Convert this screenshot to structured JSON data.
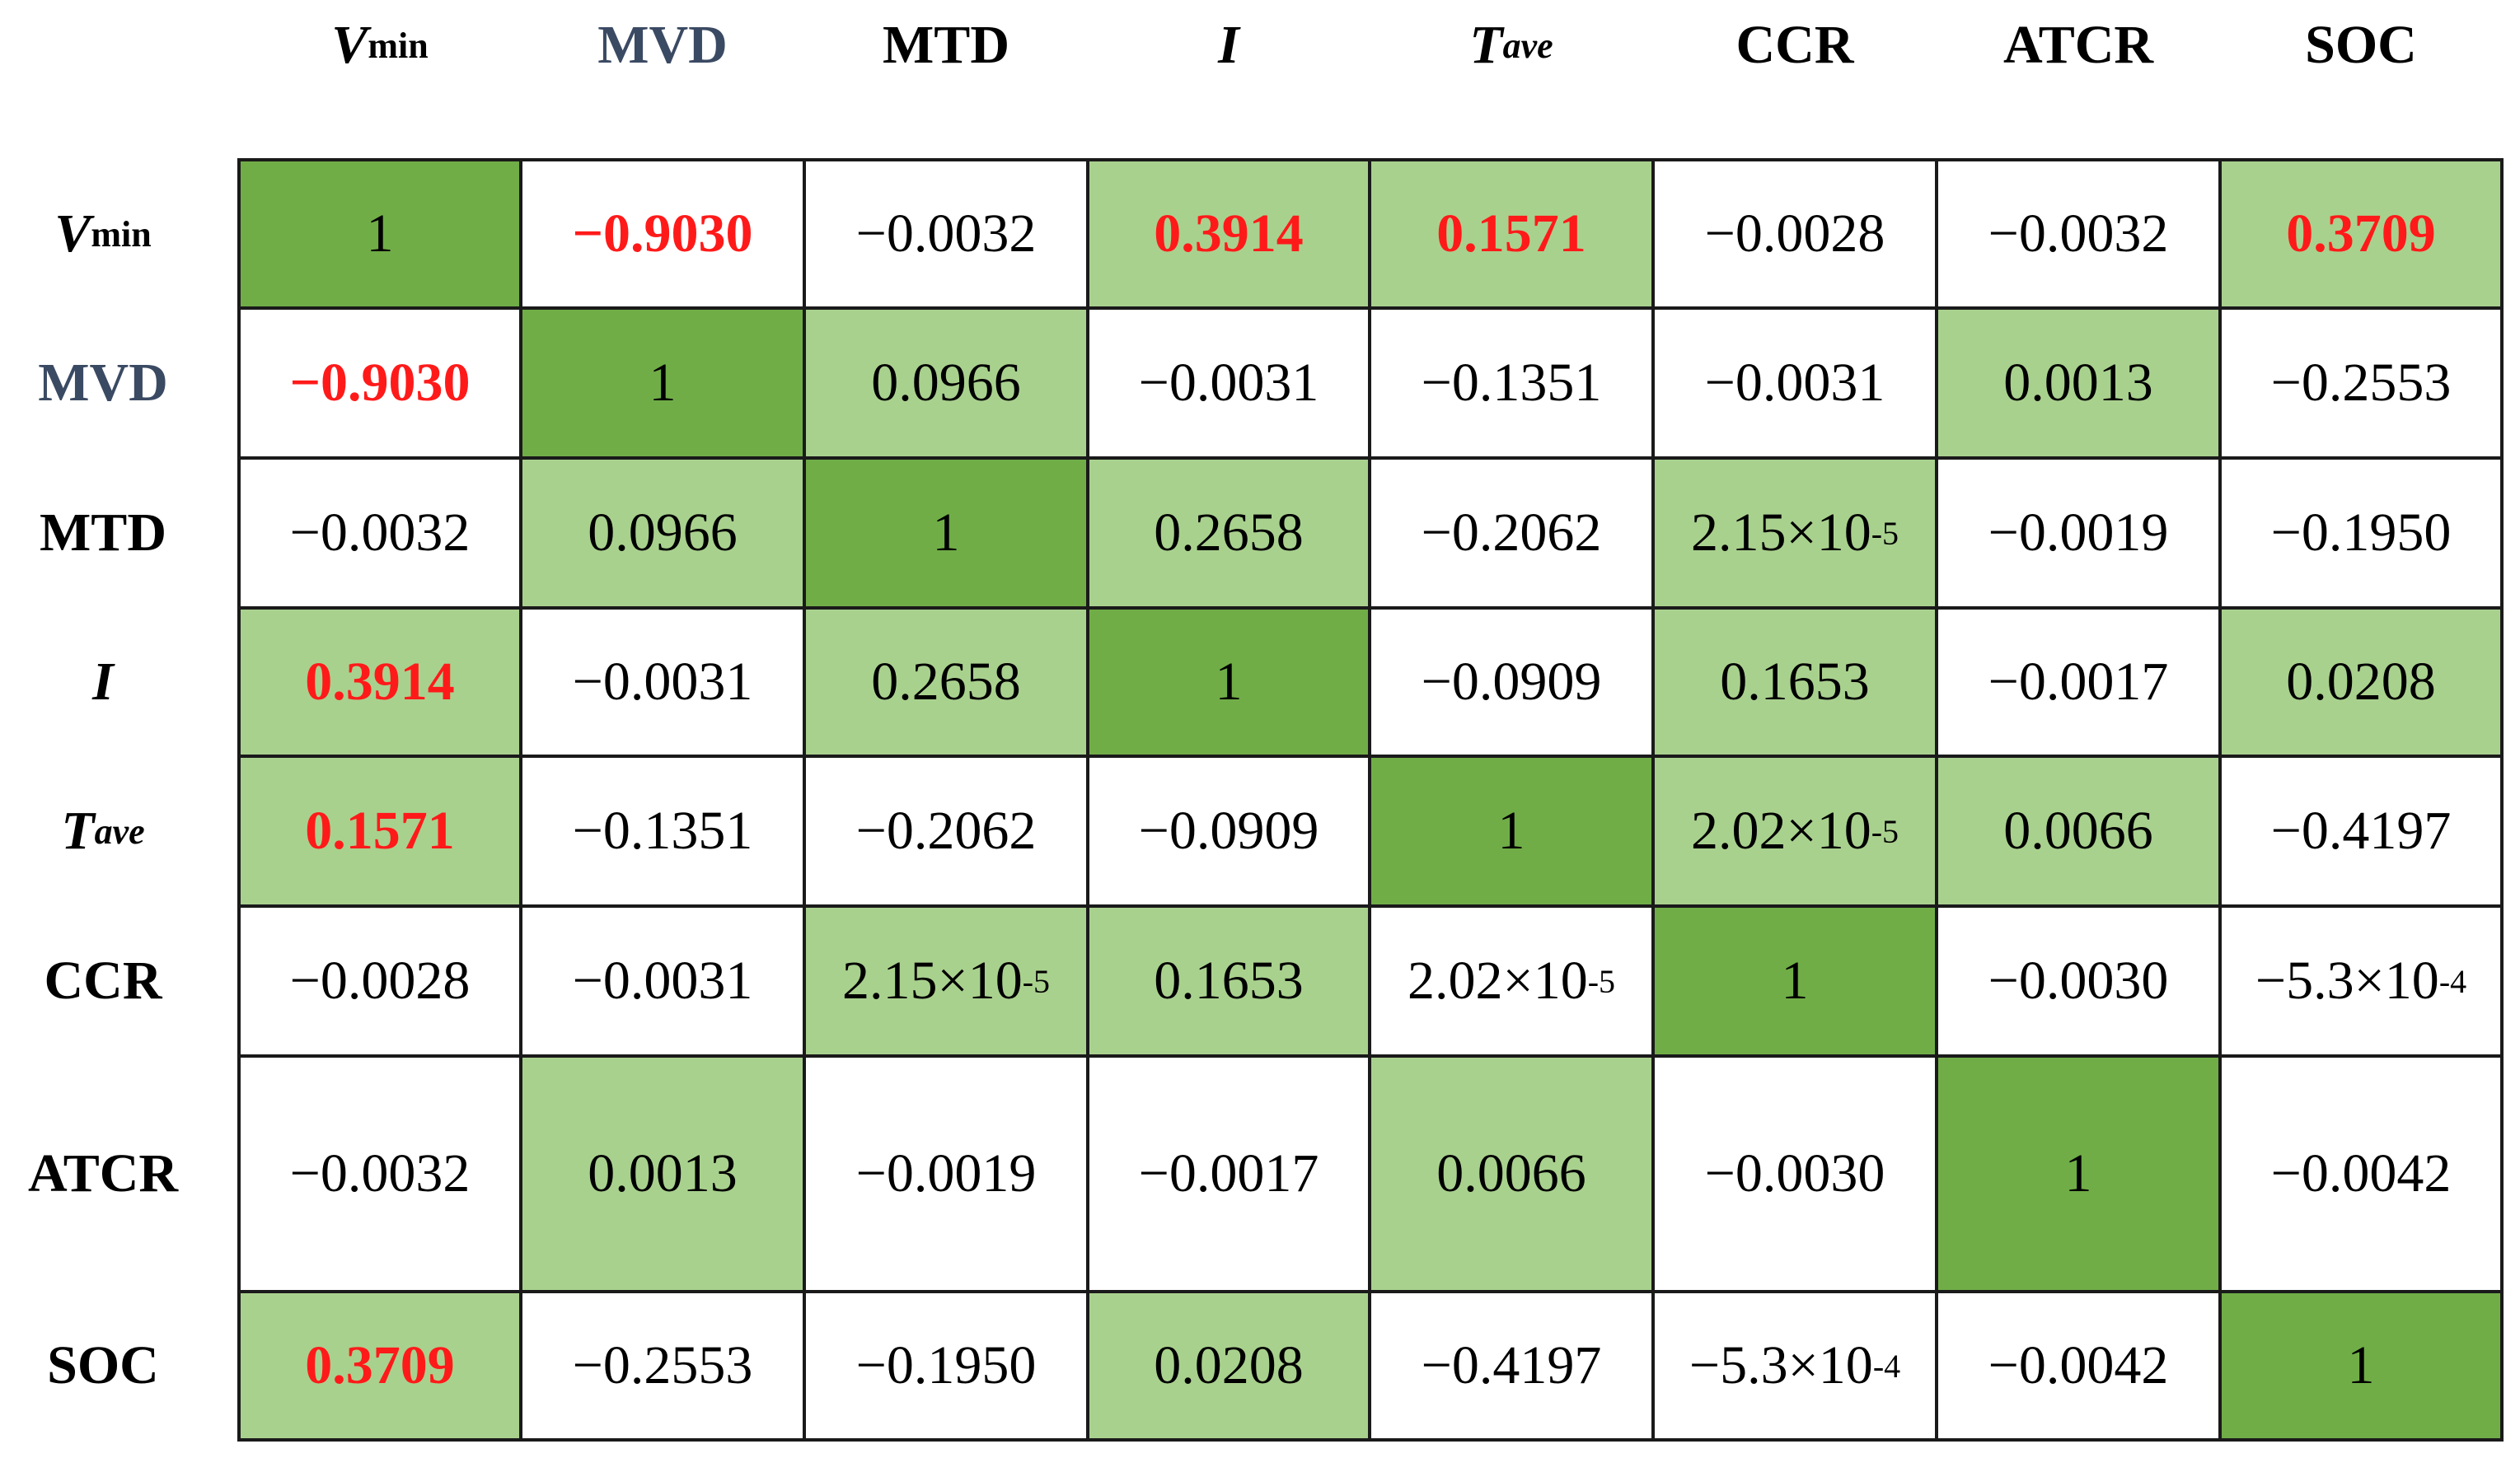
{
  "chart_data": {
    "type": "heatmap",
    "title": "",
    "variables": [
      {
        "id": "vmin",
        "base": "V",
        "sub": "min",
        "italic": true,
        "blue": false
      },
      {
        "id": "mvd",
        "base": "MVD",
        "sub": "",
        "italic": false,
        "blue": true
      },
      {
        "id": "mtd",
        "base": "MTD",
        "sub": "",
        "italic": false,
        "blue": false
      },
      {
        "id": "i",
        "base": "I",
        "sub": "",
        "italic": true,
        "blue": false
      },
      {
        "id": "tave",
        "base": "T",
        "sub": "ave",
        "italic": true,
        "blue": false
      },
      {
        "id": "ccr",
        "base": "CCR",
        "sub": "",
        "italic": false,
        "blue": false
      },
      {
        "id": "atcr",
        "base": "ATCR",
        "sub": "",
        "italic": false,
        "blue": false
      },
      {
        "id": "soc",
        "base": "SOC",
        "sub": "",
        "italic": false,
        "blue": false
      }
    ],
    "matrix": [
      [
        {
          "text": "1",
          "exp": "",
          "value": 1,
          "shade": "dark",
          "highlight": false
        },
        {
          "text": "−0.9030",
          "exp": "",
          "value": -0.903,
          "shade": "none",
          "highlight": true
        },
        {
          "text": "−0.0032",
          "exp": "",
          "value": -0.0032,
          "shade": "none",
          "highlight": false
        },
        {
          "text": "0.3914",
          "exp": "",
          "value": 0.3914,
          "shade": "light",
          "highlight": true
        },
        {
          "text": "0.1571",
          "exp": "",
          "value": 0.1571,
          "shade": "light",
          "highlight": true
        },
        {
          "text": "−0.0028",
          "exp": "",
          "value": -0.0028,
          "shade": "none",
          "highlight": false
        },
        {
          "text": "−0.0032",
          "exp": "",
          "value": -0.0032,
          "shade": "none",
          "highlight": false
        },
        {
          "text": "0.3709",
          "exp": "",
          "value": 0.3709,
          "shade": "light",
          "highlight": true
        }
      ],
      [
        {
          "text": "−0.9030",
          "exp": "",
          "value": -0.903,
          "shade": "none",
          "highlight": true
        },
        {
          "text": "1",
          "exp": "",
          "value": 1,
          "shade": "dark",
          "highlight": false
        },
        {
          "text": "0.0966",
          "exp": "",
          "value": 0.0966,
          "shade": "light",
          "highlight": false
        },
        {
          "text": "−0.0031",
          "exp": "",
          "value": -0.0031,
          "shade": "none",
          "highlight": false
        },
        {
          "text": "−0.1351",
          "exp": "",
          "value": -0.1351,
          "shade": "none",
          "highlight": false
        },
        {
          "text": "−0.0031",
          "exp": "",
          "value": -0.0031,
          "shade": "none",
          "highlight": false
        },
        {
          "text": "0.0013",
          "exp": "",
          "value": 0.0013,
          "shade": "light",
          "highlight": false
        },
        {
          "text": "−0.2553",
          "exp": "",
          "value": -0.2553,
          "shade": "none",
          "highlight": false
        }
      ],
      [
        {
          "text": "−0.0032",
          "exp": "",
          "value": -0.0032,
          "shade": "none",
          "highlight": false
        },
        {
          "text": "0.0966",
          "exp": "",
          "value": 0.0966,
          "shade": "light",
          "highlight": false
        },
        {
          "text": "1",
          "exp": "",
          "value": 1,
          "shade": "dark",
          "highlight": false
        },
        {
          "text": "0.2658",
          "exp": "",
          "value": 0.2658,
          "shade": "light",
          "highlight": false
        },
        {
          "text": "−0.2062",
          "exp": "",
          "value": -0.2062,
          "shade": "none",
          "highlight": false
        },
        {
          "text": "2.15×10",
          "exp": "-5",
          "value": 2.15e-05,
          "shade": "light",
          "highlight": false
        },
        {
          "text": "−0.0019",
          "exp": "",
          "value": -0.0019,
          "shade": "none",
          "highlight": false
        },
        {
          "text": "−0.1950",
          "exp": "",
          "value": -0.195,
          "shade": "none",
          "highlight": false
        }
      ],
      [
        {
          "text": "0.3914",
          "exp": "",
          "value": 0.3914,
          "shade": "light",
          "highlight": true
        },
        {
          "text": "−0.0031",
          "exp": "",
          "value": -0.0031,
          "shade": "none",
          "highlight": false
        },
        {
          "text": "0.2658",
          "exp": "",
          "value": 0.2658,
          "shade": "light",
          "highlight": false
        },
        {
          "text": "1",
          "exp": "",
          "value": 1,
          "shade": "dark",
          "highlight": false
        },
        {
          "text": "−0.0909",
          "exp": "",
          "value": -0.0909,
          "shade": "none",
          "highlight": false
        },
        {
          "text": "0.1653",
          "exp": "",
          "value": 0.1653,
          "shade": "light",
          "highlight": false
        },
        {
          "text": "−0.0017",
          "exp": "",
          "value": -0.0017,
          "shade": "none",
          "highlight": false
        },
        {
          "text": "0.0208",
          "exp": "",
          "value": 0.0208,
          "shade": "light",
          "highlight": false
        }
      ],
      [
        {
          "text": "0.1571",
          "exp": "",
          "value": 0.1571,
          "shade": "light",
          "highlight": true
        },
        {
          "text": "−0.1351",
          "exp": "",
          "value": -0.1351,
          "shade": "none",
          "highlight": false
        },
        {
          "text": "−0.2062",
          "exp": "",
          "value": -0.2062,
          "shade": "none",
          "highlight": false
        },
        {
          "text": "−0.0909",
          "exp": "",
          "value": -0.0909,
          "shade": "none",
          "highlight": false
        },
        {
          "text": "1",
          "exp": "",
          "value": 1,
          "shade": "dark",
          "highlight": false
        },
        {
          "text": "2.02×10",
          "exp": "-5",
          "value": 2.02e-05,
          "shade": "light",
          "highlight": false
        },
        {
          "text": "0.0066",
          "exp": "",
          "value": 0.0066,
          "shade": "light",
          "highlight": false
        },
        {
          "text": "−0.4197",
          "exp": "",
          "value": -0.4197,
          "shade": "none",
          "highlight": false
        }
      ],
      [
        {
          "text": "−0.0028",
          "exp": "",
          "value": -0.0028,
          "shade": "none",
          "highlight": false
        },
        {
          "text": "−0.0031",
          "exp": "",
          "value": -0.0031,
          "shade": "none",
          "highlight": false
        },
        {
          "text": "2.15×10",
          "exp": "-5",
          "value": 2.15e-05,
          "shade": "light",
          "highlight": false
        },
        {
          "text": "0.1653",
          "exp": "",
          "value": 0.1653,
          "shade": "light",
          "highlight": false
        },
        {
          "text": "2.02×10",
          "exp": "-5",
          "value": 2.02e-05,
          "shade": "none",
          "highlight": false
        },
        {
          "text": "1",
          "exp": "",
          "value": 1,
          "shade": "dark",
          "highlight": false
        },
        {
          "text": "−0.0030",
          "exp": "",
          "value": -0.003,
          "shade": "none",
          "highlight": false
        },
        {
          "text": "−5.3×10",
          "exp": "-4",
          "value": -0.00053,
          "shade": "none",
          "highlight": false
        }
      ],
      [
        {
          "text": "−0.0032",
          "exp": "",
          "value": -0.0032,
          "shade": "none",
          "highlight": false
        },
        {
          "text": "0.0013",
          "exp": "",
          "value": 0.0013,
          "shade": "light",
          "highlight": false
        },
        {
          "text": "−0.0019",
          "exp": "",
          "value": -0.0019,
          "shade": "none",
          "highlight": false
        },
        {
          "text": "−0.0017",
          "exp": "",
          "value": -0.0017,
          "shade": "none",
          "highlight": false
        },
        {
          "text": "0.0066",
          "exp": "",
          "value": 0.0066,
          "shade": "light",
          "highlight": false
        },
        {
          "text": "−0.0030",
          "exp": "",
          "value": -0.003,
          "shade": "none",
          "highlight": false
        },
        {
          "text": "1",
          "exp": "",
          "value": 1,
          "shade": "dark",
          "highlight": false
        },
        {
          "text": "−0.0042",
          "exp": "",
          "value": -0.0042,
          "shade": "none",
          "highlight": false
        }
      ],
      [
        {
          "text": "0.3709",
          "exp": "",
          "value": 0.3709,
          "shade": "light",
          "highlight": true
        },
        {
          "text": "−0.2553",
          "exp": "",
          "value": -0.2553,
          "shade": "none",
          "highlight": false
        },
        {
          "text": "−0.1950",
          "exp": "",
          "value": -0.195,
          "shade": "none",
          "highlight": false
        },
        {
          "text": "0.0208",
          "exp": "",
          "value": 0.0208,
          "shade": "light",
          "highlight": false
        },
        {
          "text": "−0.4197",
          "exp": "",
          "value": -0.4197,
          "shade": "none",
          "highlight": false
        },
        {
          "text": "−5.3×10",
          "exp": "-4",
          "value": -0.00053,
          "shade": "none",
          "highlight": false
        },
        {
          "text": "−0.0042",
          "exp": "",
          "value": -0.0042,
          "shade": "none",
          "highlight": false
        },
        {
          "text": "1",
          "exp": "",
          "value": 1,
          "shade": "dark",
          "highlight": false
        }
      ]
    ],
    "colors": {
      "dark": "#70ad47",
      "light": "#a9d18e",
      "none": "#ffffff",
      "highlight_text": "#ff1a1a",
      "label_blue": "#3b4a63"
    }
  }
}
